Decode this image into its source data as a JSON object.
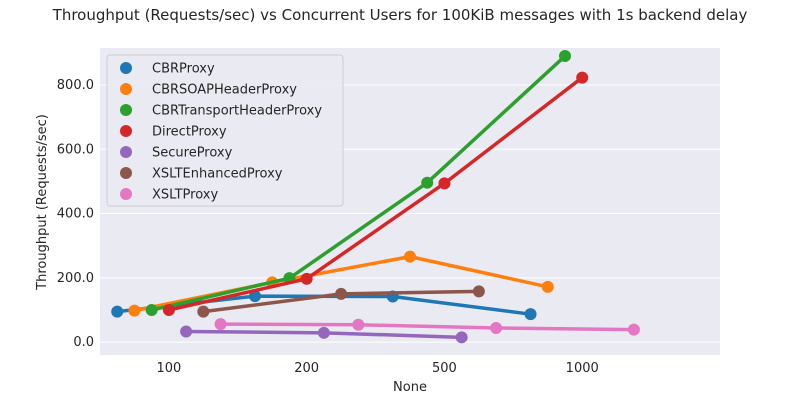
{
  "chart_data": {
    "type": "line",
    "title": "Throughput (Requests/sec) vs Concurrent Users for 100KiB messages with 1s backend delay",
    "xlabel": "None",
    "ylabel": "Throughput (Requests/sec)",
    "x_tick_labels": [
      "100",
      "200",
      "500",
      "1000"
    ],
    "y_ticks": [
      0,
      200,
      400,
      600,
      800
    ],
    "y_tick_labels": [
      "0.0",
      "200.0",
      "400.0",
      "600.0",
      "800.0"
    ],
    "ylim": [
      -40,
      915
    ],
    "grid": true,
    "legend_position": "top-left",
    "series": [
      {
        "name": "CBRProxy",
        "color": "#1f77b4",
        "x": [
          100,
          200,
          500,
          1000
        ],
        "y": [
          95,
          143,
          142,
          87
        ],
        "offset": -0.075
      },
      {
        "name": "CBRSOAPHeaderProxy",
        "color": "#ff7f0e",
        "x": [
          100,
          200,
          500,
          1000
        ],
        "y": [
          98,
          186,
          266,
          172
        ],
        "offset": -0.05
      },
      {
        "name": "CBRTransportHeaderProxy",
        "color": "#2ca02c",
        "x": [
          100,
          200,
          500,
          1000
        ],
        "y": [
          100,
          199,
          496,
          890
        ],
        "offset": -0.025
      },
      {
        "name": "DirectProxy",
        "color": "#d62728",
        "x": [
          100,
          200,
          500,
          1000
        ],
        "y": [
          100,
          197,
          494,
          823
        ],
        "offset": 0.0
      },
      {
        "name": "SecureProxy",
        "color": "#9467bd",
        "x": [
          100,
          200,
          500,
          1000
        ],
        "y": [
          33,
          29,
          15,
          null
        ],
        "offset": 0.025
      },
      {
        "name": "XSLTEnhancedProxy",
        "color": "#8c564b",
        "x": [
          100,
          200,
          500,
          1000
        ],
        "y": [
          95,
          150,
          158,
          null
        ],
        "offset": 0.05
      },
      {
        "name": "XSLTProxy",
        "color": "#e377c2",
        "x": [
          100,
          200,
          500,
          1000
        ],
        "y": [
          56,
          54,
          44,
          39
        ],
        "offset": 0.075
      }
    ]
  }
}
